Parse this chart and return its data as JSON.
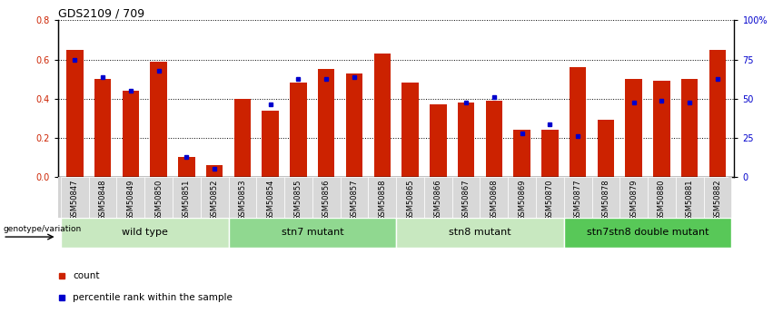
{
  "title": "GDS2109 / 709",
  "samples": [
    "GSM50847",
    "GSM50848",
    "GSM50849",
    "GSM50850",
    "GSM50851",
    "GSM50852",
    "GSM50853",
    "GSM50854",
    "GSM50855",
    "GSM50856",
    "GSM50857",
    "GSM50858",
    "GSM50865",
    "GSM50866",
    "GSM50867",
    "GSM50868",
    "GSM50869",
    "GSM50870",
    "GSM50877",
    "GSM50878",
    "GSM50879",
    "GSM50880",
    "GSM50881",
    "GSM50882"
  ],
  "counts": [
    0.65,
    0.5,
    0.44,
    0.59,
    0.1,
    0.06,
    0.4,
    0.34,
    0.48,
    0.55,
    0.53,
    0.63,
    0.48,
    0.37,
    0.38,
    0.39,
    0.24,
    0.24,
    0.56,
    0.29,
    0.5,
    0.49,
    0.5,
    0.65
  ],
  "percentiles": [
    0.6,
    0.51,
    0.44,
    0.54,
    0.1,
    0.04,
    null,
    0.37,
    0.5,
    0.5,
    0.51,
    null,
    null,
    null,
    0.38,
    0.41,
    0.22,
    0.27,
    0.21,
    null,
    0.38,
    0.39,
    0.38,
    0.5
  ],
  "groups": [
    {
      "label": "wild type",
      "start": 0,
      "end": 6,
      "color": "#c8e8c0"
    },
    {
      "label": "stn7 mutant",
      "start": 6,
      "end": 12,
      "color": "#90d890"
    },
    {
      "label": "stn8 mutant",
      "start": 12,
      "end": 18,
      "color": "#c8e8c0"
    },
    {
      "label": "stn7stn8 double mutant",
      "start": 18,
      "end": 24,
      "color": "#58c858"
    }
  ],
  "bar_color": "#cc2200",
  "dot_color": "#0000cc",
  "ylim_left": [
    0,
    0.8
  ],
  "ylim_right": [
    0,
    100
  ],
  "yticks_left": [
    0,
    0.2,
    0.4,
    0.6,
    0.8
  ],
  "yticks_right": [
    0,
    25,
    50,
    75,
    100
  ],
  "yticklabels_right": [
    "0",
    "25",
    "50",
    "75",
    "100%"
  ],
  "genotype_label": "genotype/variation",
  "legend_count": "count",
  "legend_percentile": "percentile rank within the sample",
  "title_fontsize": 9,
  "tick_fontsize": 7,
  "xtick_fontsize": 6,
  "group_fontsize": 8
}
